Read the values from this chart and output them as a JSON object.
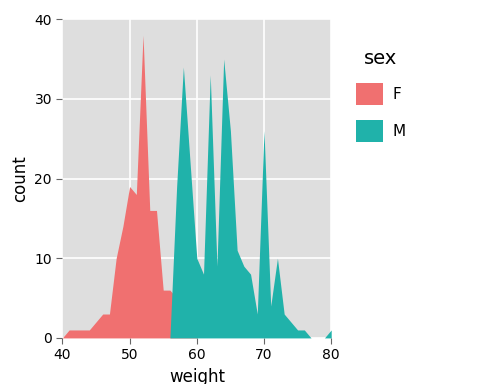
{
  "title": "",
  "xlabel": "weight",
  "ylabel": "count",
  "xlim": [
    40,
    80
  ],
  "ylim": [
    0,
    40
  ],
  "xticks": [
    40,
    50,
    60,
    70,
    80
  ],
  "yticks": [
    0,
    10,
    20,
    30,
    40
  ],
  "color_F": "#F07070",
  "color_M": "#20B2AA",
  "bg_color": "#DEDEDE",
  "legend_title": "sex",
  "legend_labels": [
    "F",
    "M"
  ],
  "F_x": [
    40,
    41,
    42,
    43,
    44,
    45,
    46,
    47,
    48,
    49,
    50,
    51,
    52,
    53,
    54,
    55,
    56,
    57,
    58,
    59,
    60,
    61
  ],
  "F_y": [
    0,
    1,
    1,
    1,
    1,
    2,
    3,
    3,
    10,
    14,
    19,
    18,
    38,
    16,
    16,
    6,
    6,
    5,
    2,
    1,
    0,
    0
  ],
  "M_x": [
    56,
    57,
    58,
    59,
    60,
    61,
    62,
    63,
    64,
    65,
    66,
    67,
    68,
    69,
    70,
    71,
    72,
    73,
    74,
    75,
    76,
    77,
    78,
    79,
    80
  ],
  "M_y": [
    0,
    19,
    34,
    22,
    10,
    8,
    33,
    9,
    35,
    26,
    11,
    9,
    8,
    3,
    26,
    4,
    10,
    3,
    2,
    1,
    1,
    0,
    0,
    0,
    1
  ]
}
